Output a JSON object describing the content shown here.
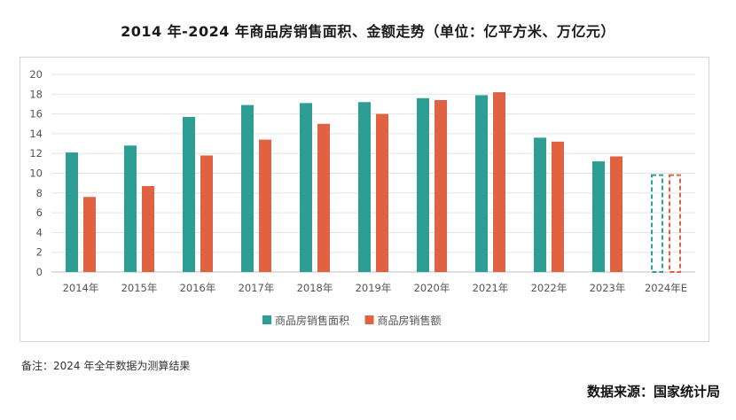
{
  "title": "2014 年-2024 年商品房销售面积、金额走势（单位：亿平方米、万亿元）",
  "note": "备注：2024 年全年数据为测算结果",
  "source": "数据来源：国家统计局",
  "chart_data": {
    "type": "bar",
    "title": "2014 年-2024 年商品房销售面积、金额走势（单位：亿平方米、万亿元）",
    "categories": [
      "2014年",
      "2015年",
      "2016年",
      "2017年",
      "2018年",
      "2019年",
      "2020年",
      "2021年",
      "2022年",
      "2023年",
      "2024年E"
    ],
    "series": [
      {
        "name": "商品房销售面积",
        "color": "#2e9e94",
        "values": [
          12.1,
          12.8,
          15.7,
          16.9,
          17.1,
          17.2,
          17.6,
          17.9,
          13.6,
          11.2,
          9.9
        ],
        "estimated_last": true
      },
      {
        "name": "商品房销售额",
        "color": "#e06243",
        "values": [
          7.6,
          8.7,
          11.8,
          13.4,
          15.0,
          16.0,
          17.4,
          18.2,
          13.2,
          11.7,
          9.9
        ],
        "estimated_last": true
      }
    ],
    "ylim": [
      0,
      20
    ],
    "yticks": [
      0,
      2,
      4,
      6,
      8,
      10,
      12,
      14,
      16,
      18,
      20
    ],
    "grid": true,
    "legend": "bottom-center"
  }
}
